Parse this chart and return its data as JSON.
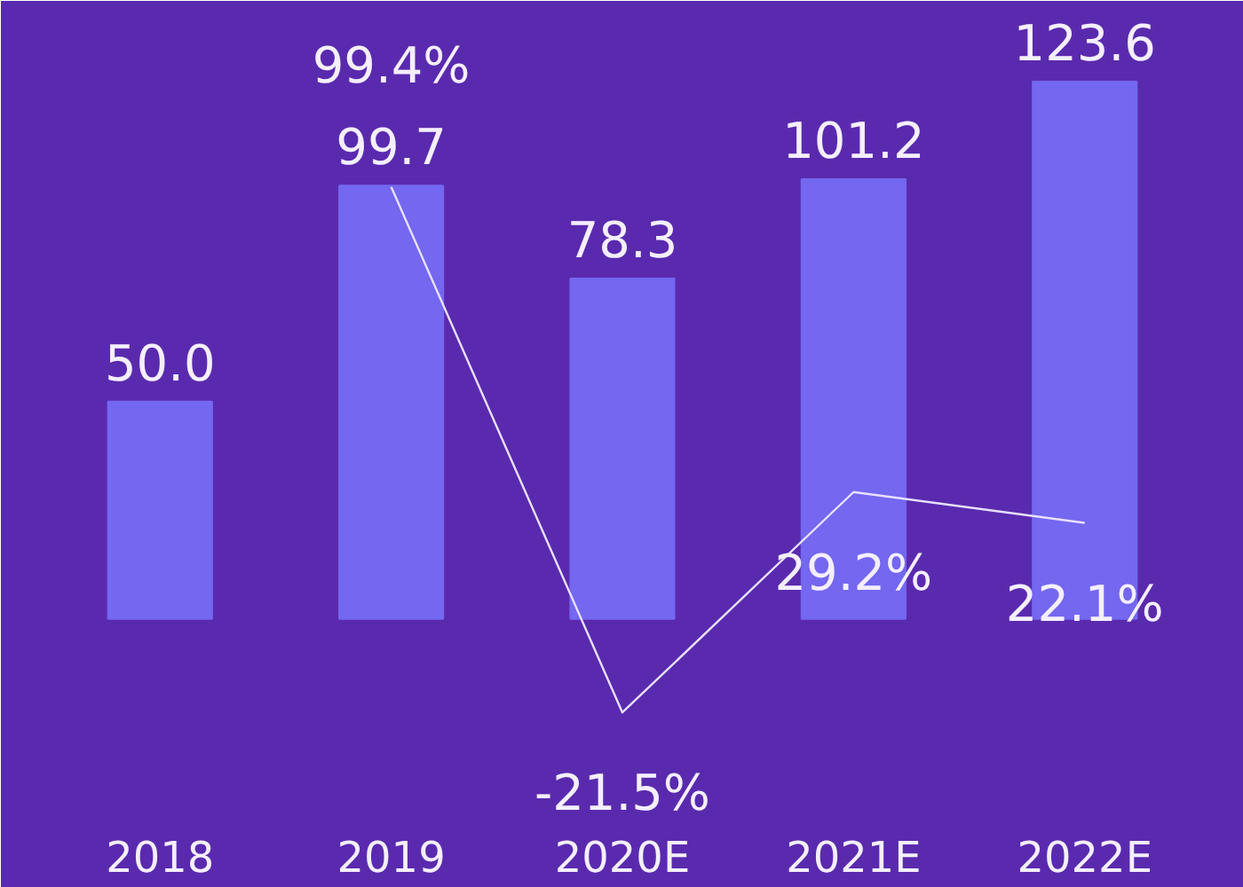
{
  "chart_data": {
    "type": "bar",
    "categories": [
      "2018",
      "2019",
      "2020E",
      "2021E",
      "2022E"
    ],
    "series": [
      {
        "color": "#7467f0",
        "values": [
          50.0,
          99.7,
          78.3,
          101.2,
          123.6
        ],
        "value_labels": [
          "50.0",
          "99.7",
          "78.3",
          "101.2",
          "123.6"
        ]
      },
      {
        "type": "line",
        "color": "#e8e0ff",
        "values": [
          null,
          99.4,
          -21.5,
          29.2,
          22.1
        ],
        "value_labels": [
          null,
          "99.4%",
          "-21.5%",
          "29.2%",
          "22.1%"
        ]
      }
    ],
    "grid": false,
    "marker": "none",
    "line_style": "solid"
  }
}
